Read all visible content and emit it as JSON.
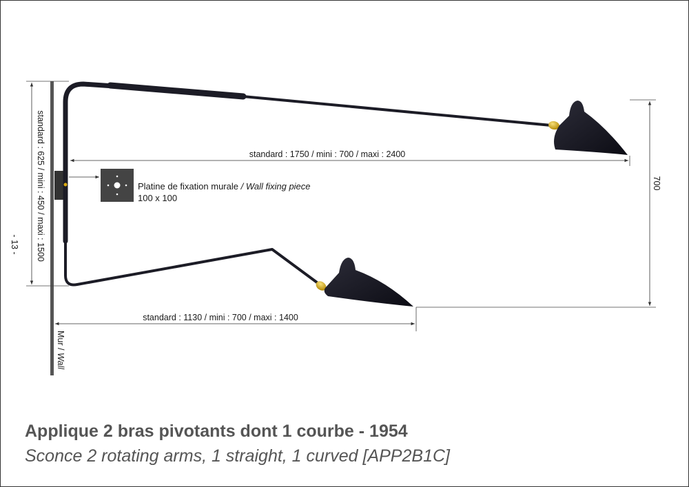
{
  "page_number": "- 13 -",
  "dimensions": {
    "upper_arm": "standard : 1750 / mini : 700 / maxi : 2400",
    "lower_arm": "standard : 1130 / mini : 700 / maxi : 1400",
    "vertical_mount": "standard : 625 / mini : 450 / maxi : 1500",
    "shade_drop": "700"
  },
  "fixing_plate": {
    "label_fr": "Platine de fixation murale",
    "label_separator": " / ",
    "label_en": "Wall fixing piece",
    "size": "100 x 100"
  },
  "wall_label": {
    "fr": "Mur / ",
    "en": "Wall"
  },
  "title": {
    "fr": "Applique 2 bras pivotants dont 1 courbe - 1954",
    "en": "Sconce 2 rotating arms, 1 straight, 1 curved  [APP2B1C]"
  },
  "colors": {
    "lamp": "#1c1c26",
    "brass": "#d9a910",
    "wall": "#555555",
    "dimension_line": "#444444"
  }
}
